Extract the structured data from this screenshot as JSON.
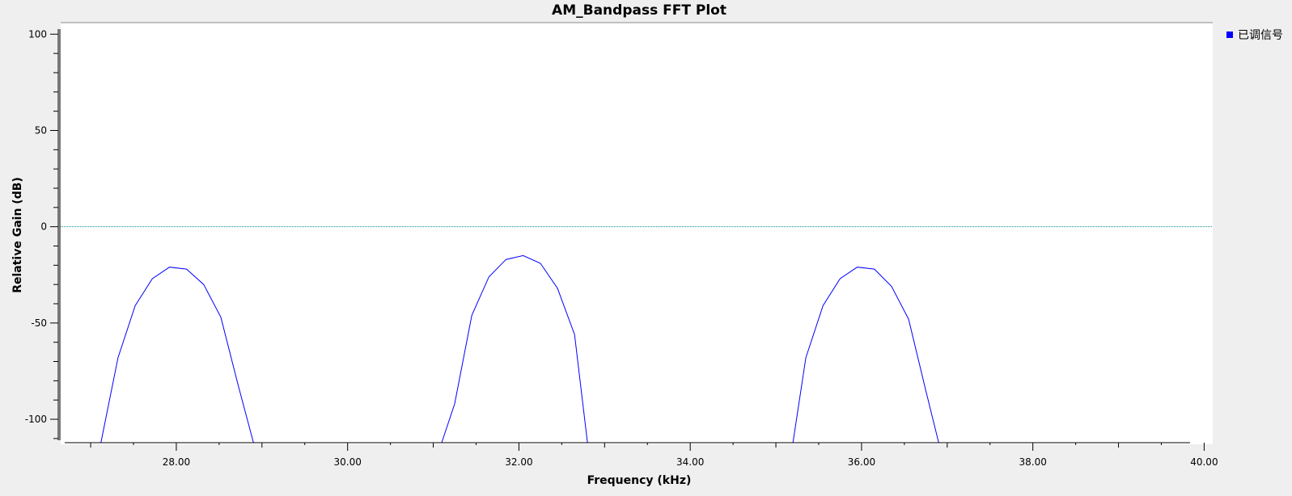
{
  "chart_data": {
    "type": "line",
    "title": "AM_Bandpass FFT Plot",
    "xlabel": "Frequency (kHz)",
    "ylabel": "Relative Gain (dB)",
    "xlim": [
      26.65,
      40.1
    ],
    "ylim": [
      -113,
      106
    ],
    "xticks": [
      28,
      30,
      32,
      34,
      36,
      38,
      40
    ],
    "xtick_labels": [
      "28.00",
      "30.00",
      "32.00",
      "34.00",
      "36.00",
      "38.00",
      "40.00"
    ],
    "yticks": [
      100,
      50,
      0,
      -50,
      -100
    ],
    "ytick_labels": [
      "100",
      "50",
      "0",
      "-50",
      "-100"
    ],
    "grid": false,
    "reference_line": {
      "y": 0,
      "style": "dotted",
      "color": "#008b8b"
    },
    "legend": {
      "position": "top-right"
    },
    "series": [
      {
        "name": "已调信号",
        "color": "#0000ff",
        "segments": [
          [
            [
              27.12,
              -112
            ],
            [
              27.32,
              -68
            ],
            [
              27.52,
              -41
            ],
            [
              27.72,
              -27
            ],
            [
              27.92,
              -21
            ],
            [
              28.12,
              -22
            ],
            [
              28.32,
              -30
            ],
            [
              28.52,
              -47
            ],
            [
              28.72,
              -82
            ],
            [
              28.9,
              -112
            ]
          ],
          [
            [
              31.1,
              -112
            ],
            [
              31.25,
              -92
            ],
            [
              31.45,
              -46
            ],
            [
              31.65,
              -26
            ],
            [
              31.85,
              -17
            ],
            [
              32.05,
              -15
            ],
            [
              32.25,
              -19
            ],
            [
              32.45,
              -32
            ],
            [
              32.65,
              -56
            ],
            [
              32.8,
              -112
            ]
          ],
          [
            [
              35.2,
              -112
            ],
            [
              35.35,
              -68
            ],
            [
              35.55,
              -41
            ],
            [
              35.75,
              -27
            ],
            [
              35.95,
              -21
            ],
            [
              36.15,
              -22
            ],
            [
              36.35,
              -31
            ],
            [
              36.55,
              -48
            ],
            [
              36.75,
              -85
            ],
            [
              36.9,
              -112
            ]
          ]
        ]
      }
    ]
  }
}
